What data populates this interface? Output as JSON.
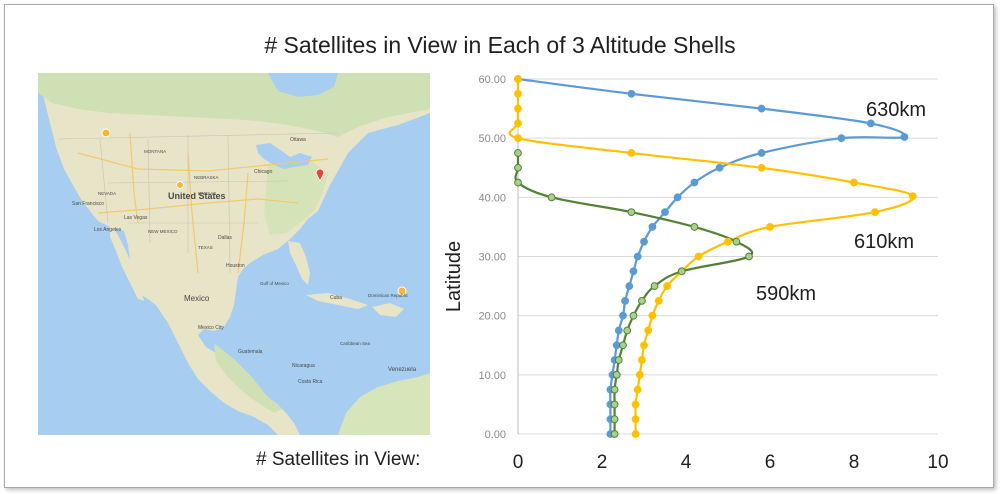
{
  "title": "# Satellites in View in Each of 3 Altitude Shells",
  "map": {
    "labels": {
      "country_us": "United States",
      "country_mexico": "Mexico",
      "ottawa": "Ottawa",
      "chicago": "Chicago",
      "san_francisco": "San Francisco",
      "las_vegas": "Las Vegas",
      "los_angeles": "Los Angeles",
      "dallas": "Dallas",
      "houston": "Houston",
      "mexico_city": "Mexico City",
      "cuba": "Cuba",
      "dominican": "Dominican Republic",
      "guatemala": "Guatemala",
      "nicaragua": "Nicaragua",
      "costa_rica": "Costa Rica",
      "venezuela": "Venezuela",
      "gulf_of_mexico": "Gulf of Mexico",
      "caribbean": "Caribbean Sea",
      "new_mexico": "NEW MEXICO",
      "texas": "TEXAS",
      "nevada": "NEVADA",
      "montana": "MONTANA",
      "nebraska": "NEBRASKA",
      "kansas": "KANSAS"
    }
  },
  "chart_data": {
    "type": "line",
    "xlabel": "# Satellites in View:",
    "ylabel": "Latitude",
    "xlim": [
      0,
      10
    ],
    "ylim": [
      0,
      60
    ],
    "xticks": [
      "0",
      "2",
      "4",
      "6",
      "8",
      "10"
    ],
    "yticks": [
      "0.00",
      "10.00",
      "20.00",
      "30.00",
      "40.00",
      "50.00",
      "60.00"
    ],
    "series": [
      {
        "name": "630km",
        "color": "#5b9bd5",
        "marker_fill": "#5b9bd5",
        "points": [
          [
            2.2,
            0
          ],
          [
            2.2,
            2.5
          ],
          [
            2.2,
            5
          ],
          [
            2.2,
            7.5
          ],
          [
            2.25,
            10
          ],
          [
            2.3,
            12.5
          ],
          [
            2.35,
            15
          ],
          [
            2.4,
            17.5
          ],
          [
            2.5,
            20
          ],
          [
            2.55,
            22.5
          ],
          [
            2.65,
            25
          ],
          [
            2.75,
            27.5
          ],
          [
            2.85,
            30
          ],
          [
            3.0,
            32.5
          ],
          [
            3.2,
            35
          ],
          [
            3.5,
            37.5
          ],
          [
            3.8,
            40
          ],
          [
            4.2,
            42.5
          ],
          [
            4.8,
            45
          ],
          [
            5.8,
            47.5
          ],
          [
            7.7,
            50
          ],
          [
            9.2,
            50.2
          ],
          [
            8.4,
            52.5
          ],
          [
            5.8,
            55
          ],
          [
            2.7,
            57.5
          ],
          [
            0,
            60
          ]
        ]
      },
      {
        "name": "610km",
        "color": "#ffc000",
        "marker_fill": "#ffc000",
        "points": [
          [
            2.8,
            0
          ],
          [
            2.8,
            2.5
          ],
          [
            2.8,
            5
          ],
          [
            2.85,
            7.5
          ],
          [
            2.9,
            10
          ],
          [
            2.95,
            12.5
          ],
          [
            3.0,
            15
          ],
          [
            3.1,
            17.5
          ],
          [
            3.2,
            20
          ],
          [
            3.35,
            22.5
          ],
          [
            3.55,
            25
          ],
          [
            3.9,
            27.5
          ],
          [
            4.3,
            30
          ],
          [
            5.0,
            32.5
          ],
          [
            6.0,
            35
          ],
          [
            8.5,
            37.5
          ],
          [
            9.4,
            40.2
          ],
          [
            8.0,
            42.5
          ],
          [
            5.8,
            45
          ],
          [
            2.7,
            47.5
          ],
          [
            0,
            50
          ],
          [
            0,
            52.5
          ],
          [
            0,
            55
          ],
          [
            0,
            57.5
          ],
          [
            0,
            60
          ]
        ]
      },
      {
        "name": "590km",
        "color": "#548235",
        "marker_fill": "#a9d18e",
        "points": [
          [
            2.3,
            0
          ],
          [
            2.3,
            2.5
          ],
          [
            2.3,
            5
          ],
          [
            2.3,
            7.5
          ],
          [
            2.35,
            10
          ],
          [
            2.4,
            12.5
          ],
          [
            2.5,
            15
          ],
          [
            2.6,
            17.5
          ],
          [
            2.75,
            20
          ],
          [
            2.95,
            22.5
          ],
          [
            3.25,
            25
          ],
          [
            3.9,
            27.5
          ],
          [
            5.5,
            30
          ],
          [
            5.2,
            32.5
          ],
          [
            4.2,
            35
          ],
          [
            2.7,
            37.5
          ],
          [
            0.8,
            40
          ],
          [
            0,
            42.5
          ],
          [
            0,
            45
          ],
          [
            0,
            47.5
          ]
        ]
      }
    ]
  }
}
